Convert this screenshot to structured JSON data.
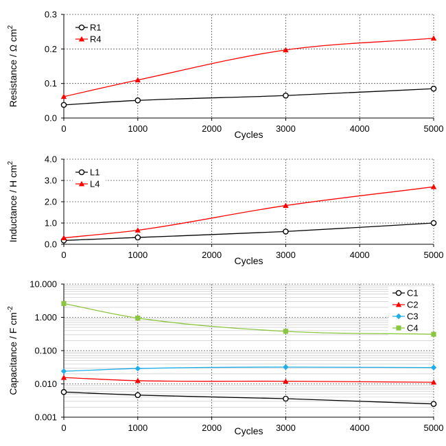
{
  "chart_data": [
    {
      "type": "line",
      "ylabel": "Resistance / Ω cm",
      "ylabel_sup": "2",
      "xlabel": "Cycles",
      "x": [
        0,
        1000,
        3000,
        5000
      ],
      "xlim": [
        0,
        5000
      ],
      "xticks": [
        0,
        1000,
        2000,
        3000,
        4000,
        5000
      ],
      "xtick_labels": [
        "0",
        "1000",
        "2000",
        "3000",
        "4000",
        "5000"
      ],
      "ylim": [
        0,
        0.3
      ],
      "yticks": [
        0,
        0.1,
        0.2,
        0.3
      ],
      "ytick_labels": [
        "0.0",
        "0.1",
        "0.2",
        "0.3"
      ],
      "grid": "dashed",
      "legend": "top-left",
      "series": [
        {
          "name": "R1",
          "values": [
            0.038,
            0.051,
            0.065,
            0.085
          ],
          "color": "#000000",
          "marker": "circle"
        },
        {
          "name": "R4",
          "values": [
            0.062,
            0.11,
            0.197,
            0.231
          ],
          "color": "#ff0000",
          "marker": "triangle"
        }
      ]
    },
    {
      "type": "line",
      "ylabel": "Inductance / H cm",
      "ylabel_sup": "2",
      "xlabel": "Cycles",
      "x": [
        0,
        1000,
        3000,
        5000
      ],
      "xlim": [
        0,
        5000
      ],
      "xticks": [
        0,
        1000,
        2000,
        3000,
        4000,
        5000
      ],
      "xtick_labels": [
        "0",
        "1000",
        "2000",
        "3000",
        "4000",
        "5000"
      ],
      "ylim": [
        0,
        4.0
      ],
      "yticks": [
        0,
        1,
        2,
        3,
        4
      ],
      "ytick_labels": [
        "0.0",
        "1.0",
        "2.0",
        "3.0",
        "4.0"
      ],
      "grid": "dashed",
      "legend": "top-left",
      "series": [
        {
          "name": "L1",
          "values": [
            0.18,
            0.32,
            0.6,
            1.0
          ],
          "color": "#000000",
          "marker": "circle"
        },
        {
          "name": "L4",
          "values": [
            0.3,
            0.66,
            1.82,
            2.7
          ],
          "color": "#ff0000",
          "marker": "triangle"
        }
      ]
    },
    {
      "type": "line",
      "ylabel": "Capacitance / F cm",
      "ylabel_sup": "-2",
      "xlabel": "Cycles",
      "x": [
        0,
        1000,
        3000,
        5000
      ],
      "xlim": [
        0,
        5000
      ],
      "xticks": [
        0,
        1000,
        2000,
        3000,
        4000,
        5000
      ],
      "xtick_labels": [
        "0",
        "1000",
        "2000",
        "3000",
        "4000",
        "5000"
      ],
      "yscale": "log",
      "ylim": [
        0.001,
        10
      ],
      "yticks": [
        0.001,
        0.01,
        0.1,
        1,
        10
      ],
      "ytick_labels": [
        "0.001",
        "0.010",
        "0.100",
        "1.000",
        "10.000"
      ],
      "grid": "dashed",
      "legend": "top-right",
      "series": [
        {
          "name": "C1",
          "values": [
            0.0057,
            0.0046,
            0.0036,
            0.0025
          ],
          "color": "#000000",
          "marker": "circle"
        },
        {
          "name": "C2",
          "values": [
            0.0155,
            0.0125,
            0.012,
            0.0112
          ],
          "color": "#ff0000",
          "marker": "triangle"
        },
        {
          "name": "C3",
          "values": [
            0.024,
            0.029,
            0.032,
            0.031
          ],
          "color": "#1eaee8",
          "marker": "diamond"
        },
        {
          "name": "C4",
          "values": [
            2.6,
            0.95,
            0.38,
            0.31
          ],
          "color": "#8cc63f",
          "marker": "square"
        }
      ]
    }
  ]
}
